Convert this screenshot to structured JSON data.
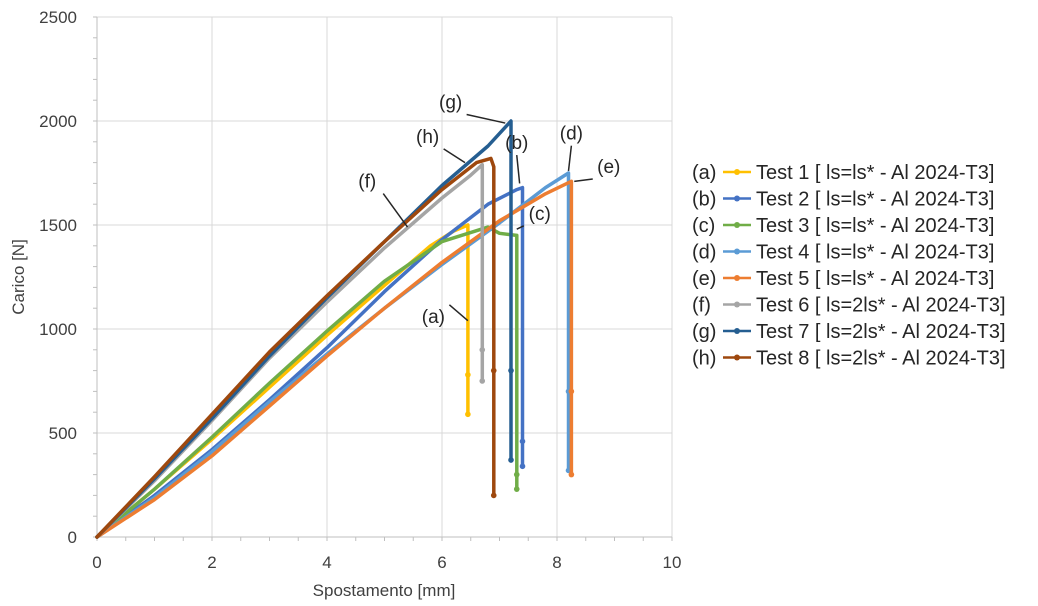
{
  "chart_data": {
    "type": "line",
    "xlabel": "Spostamento [mm]",
    "ylabel": "Carico [N]",
    "xlim": [
      0,
      10
    ],
    "ylim": [
      0,
      2500
    ],
    "xticks": [
      "0",
      "2",
      "4",
      "6",
      "8",
      "10"
    ],
    "yticks": [
      "0",
      "500",
      "1000",
      "1500",
      "2000",
      "2500"
    ],
    "grid": true,
    "legend_position": "right",
    "series": [
      {
        "name": "Test 1",
        "letter": "(a)",
        "legend_label": "Test 1 [ ls=ls* - Al 2024-T3]",
        "color": "#ffc000",
        "x": [
          0,
          1,
          2,
          3,
          4,
          5,
          5.8,
          6.2,
          6.45,
          6.45,
          6.45
        ],
        "y": [
          0,
          230,
          470,
          720,
          970,
          1210,
          1400,
          1470,
          1500,
          780,
          590
        ]
      },
      {
        "name": "Test 2",
        "letter": "(b)",
        "legend_label": "Test 2 [ ls=ls* - Al 2024-T3]",
        "color": "#4472c4",
        "x": [
          0,
          1,
          2,
          3,
          4,
          5,
          6,
          6.8,
          7.3,
          7.4,
          7.4,
          7.4
        ],
        "y": [
          0,
          200,
          420,
          660,
          910,
          1180,
          1430,
          1600,
          1670,
          1680,
          460,
          340
        ]
      },
      {
        "name": "Test 3",
        "letter": "(c)",
        "legend_label": "Test 3 [ ls=ls* - Al 2024-T3]",
        "color": "#70ad47",
        "x": [
          0,
          1,
          2,
          3,
          4,
          5,
          6,
          6.8,
          7.0,
          7.3,
          7.3,
          7.3
        ],
        "y": [
          0,
          230,
          480,
          740,
          990,
          1230,
          1420,
          1490,
          1460,
          1450,
          300,
          230
        ]
      },
      {
        "name": "Test 4",
        "letter": "(d)",
        "legend_label": "Test 4 [ ls=ls* - Al 2024-T3]",
        "color": "#5b9bd5",
        "x": [
          0,
          1,
          2,
          3,
          4,
          5,
          6,
          7,
          7.8,
          8.2,
          8.2,
          8.2
        ],
        "y": [
          0,
          190,
          410,
          650,
          880,
          1100,
          1310,
          1510,
          1680,
          1750,
          700,
          320
        ]
      },
      {
        "name": "Test 5",
        "letter": "(e)",
        "legend_label": "Test 5 [ ls=ls* - Al 2024-T3]",
        "color": "#ed7d31",
        "x": [
          0,
          1,
          2,
          3,
          4,
          5,
          6,
          7,
          7.8,
          8.25,
          8.25,
          8.25
        ],
        "y": [
          0,
          180,
          390,
          630,
          870,
          1100,
          1320,
          1520,
          1650,
          1710,
          700,
          300
        ]
      },
      {
        "name": "Test 6",
        "letter": "(f)",
        "legend_label": "Test 6 [ ls=2ls* - Al 2024-T3]",
        "color": "#a5a5a5",
        "x": [
          0,
          1,
          2,
          3,
          4,
          5,
          6,
          6.5,
          6.7,
          6.7,
          6.7
        ],
        "y": [
          0,
          270,
          560,
          860,
          1130,
          1390,
          1630,
          1740,
          1790,
          900,
          750
        ]
      },
      {
        "name": "Test 7",
        "letter": "(g)",
        "legend_label": "Test 7 [ ls=2ls* - Al 2024-T3]",
        "color": "#255e91",
        "x": [
          0,
          1,
          2,
          3,
          4,
          5,
          6,
          6.8,
          7.2,
          7.2,
          7.2
        ],
        "y": [
          0,
          280,
          570,
          870,
          1150,
          1420,
          1690,
          1880,
          2000,
          800,
          370
        ]
      },
      {
        "name": "Test 8",
        "letter": "(h)",
        "legend_label": "Test 8 [ ls=2ls* - Al 2024-T3]",
        "color": "#9e480e",
        "x": [
          0,
          1,
          2,
          3,
          4,
          5,
          6,
          6.6,
          6.85,
          6.9,
          6.9,
          6.9
        ],
        "y": [
          0,
          290,
          590,
          890,
          1160,
          1420,
          1670,
          1800,
          1820,
          1780,
          800,
          200
        ]
      }
    ],
    "annotations": [
      {
        "text": "(a)",
        "x": 5.85,
        "y": 1030,
        "arrow_to": [
          6.45,
          1040
        ]
      },
      {
        "text": "(b)",
        "x": 7.3,
        "y": 1865,
        "arrow_to": [
          7.35,
          1700
        ]
      },
      {
        "text": "(c)",
        "x": 7.7,
        "y": 1525,
        "arrow_to": [
          7.3,
          1480
        ]
      },
      {
        "text": "(d)",
        "x": 8.25,
        "y": 1910,
        "arrow_to": [
          8.2,
          1760
        ]
      },
      {
        "text": "(e)",
        "x": 8.9,
        "y": 1750,
        "arrow_to": [
          8.3,
          1710
        ]
      },
      {
        "text": "(f)",
        "x": 4.7,
        "y": 1680,
        "arrow_to": [
          5.4,
          1490
        ]
      },
      {
        "text": "(g)",
        "x": 6.15,
        "y": 2060,
        "arrow_to": [
          7.1,
          1990
        ]
      },
      {
        "text": "(h)",
        "x": 5.75,
        "y": 1895,
        "arrow_to": [
          6.4,
          1800
        ]
      }
    ]
  }
}
